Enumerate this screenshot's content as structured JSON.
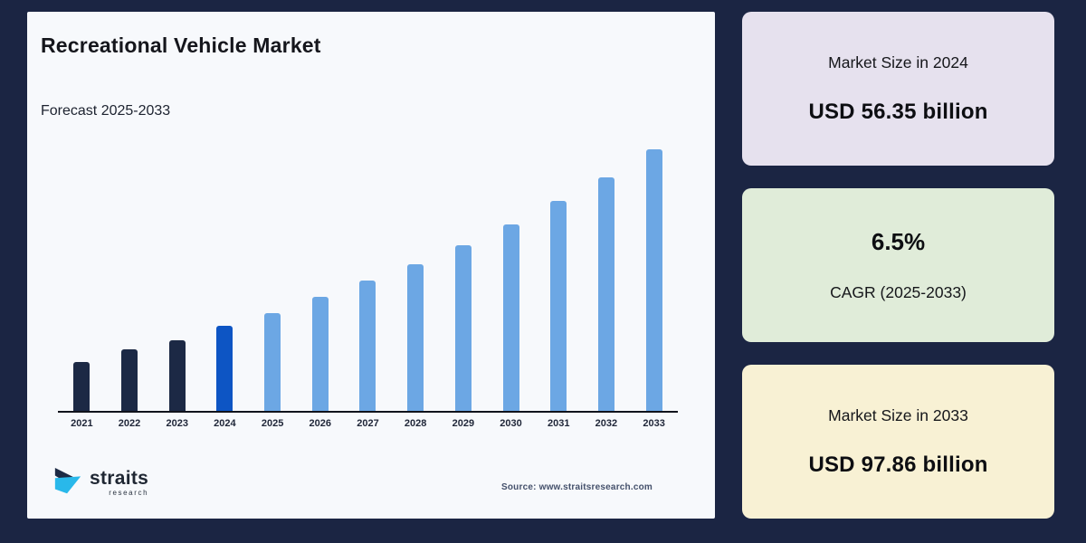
{
  "palette": {
    "page_bg": "#1b2543",
    "panel_bg": "#f7f9fc",
    "axis_color": "#10131c",
    "logo_navy": "#1d2a44",
    "logo_cyan": "#29b8ea"
  },
  "chart_panel": {
    "title": "Recreational Vehicle Market",
    "subtitle": "Forecast 2025-2033",
    "source": "Source: www.straitsresearch.com",
    "logo_name": "straits",
    "logo_sub": "research"
  },
  "chart_data": {
    "type": "bar",
    "title": "Recreational Vehicle Market",
    "subtitle": "Forecast 2025-2033",
    "unit": "USD billion",
    "categories": [
      "2021",
      "2022",
      "2023",
      "2024",
      "2025",
      "2026",
      "2027",
      "2028",
      "2029",
      "2030",
      "2031",
      "2032",
      "2033"
    ],
    "values": [
      47.8,
      50.9,
      52.9,
      56.35,
      59.3,
      63.2,
      67.0,
      70.8,
      75.3,
      80.2,
      85.7,
      91.3,
      97.86
    ],
    "highlighted_points": [
      {
        "category": "2024",
        "value": 56.35
      },
      {
        "category": "2033",
        "value": 97.86
      }
    ],
    "cagr_pct": 6.5,
    "roles": [
      "history",
      "history",
      "history",
      "base_year",
      "forecast",
      "forecast",
      "forecast",
      "forecast",
      "forecast",
      "forecast",
      "forecast",
      "forecast",
      "forecast"
    ],
    "bar_colors": {
      "history": "#1c2945",
      "base_year": "#0d55c4",
      "forecast": "#6ca7e4"
    },
    "xlabel": "",
    "ylabel": "",
    "y_axis_visible": false,
    "grid": false,
    "legend": false
  },
  "cards": [
    {
      "bg": "#e6e1ee",
      "rows": [
        {
          "text": "Market Size in 2024",
          "style": "small"
        },
        {
          "text": "USD 56.35 billion",
          "style": "big"
        }
      ]
    },
    {
      "bg": "#e0ecd9",
      "rows": [
        {
          "text": "6.5%",
          "style": "xl"
        },
        {
          "text": "CAGR (2025-2033)",
          "style": "small"
        }
      ]
    },
    {
      "bg": "#f8f1d4",
      "rows": [
        {
          "text": "Market Size in 2033",
          "style": "small"
        },
        {
          "text": "USD 97.86 billion",
          "style": "big"
        }
      ]
    }
  ]
}
